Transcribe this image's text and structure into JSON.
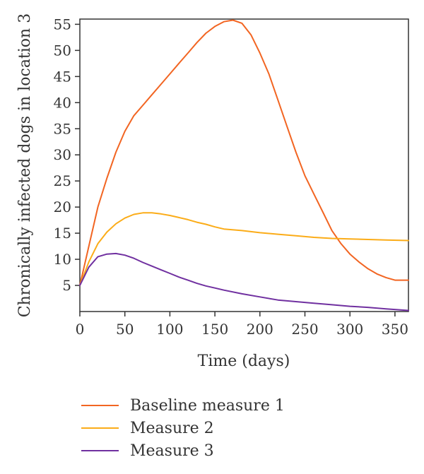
{
  "chart_data": {
    "type": "line",
    "title": "",
    "xlabel": "Time (days)",
    "ylabel": "Chronically infected dogs in location 3",
    "xlim": [
      0,
      365
    ],
    "ylim": [
      0,
      56
    ],
    "xticks": [
      0,
      50,
      100,
      150,
      200,
      250,
      300,
      350
    ],
    "yticks": [
      5,
      10,
      15,
      20,
      25,
      30,
      35,
      40,
      45,
      50,
      55
    ],
    "grid": false,
    "legend": "bottom",
    "series": [
      {
        "name": "Baseline measure 1",
        "color": "#f26522",
        "x": [
          0,
          10,
          20,
          30,
          40,
          50,
          60,
          70,
          80,
          90,
          100,
          110,
          120,
          130,
          140,
          150,
          160,
          170,
          180,
          190,
          200,
          210,
          220,
          230,
          240,
          250,
          260,
          270,
          280,
          290,
          300,
          310,
          320,
          330,
          340,
          350,
          360,
          365
        ],
        "values": [
          5,
          12.5,
          20,
          25.5,
          30.5,
          34.5,
          37.5,
          39.5,
          41.5,
          43.5,
          45.5,
          47.5,
          49.5,
          51.5,
          53.3,
          54.6,
          55.5,
          55.8,
          55.2,
          53,
          49.5,
          45.5,
          40.5,
          35.5,
          30.5,
          26,
          22.5,
          19,
          15.5,
          13,
          11,
          9.5,
          8.2,
          7.2,
          6.5,
          6.0,
          6.0,
          6.0
        ]
      },
      {
        "name": "Measure 2",
        "color": "#fbac18",
        "x": [
          0,
          10,
          20,
          30,
          40,
          50,
          60,
          70,
          80,
          90,
          100,
          110,
          120,
          130,
          140,
          150,
          160,
          180,
          200,
          220,
          240,
          260,
          280,
          300,
          320,
          340,
          365
        ],
        "values": [
          5,
          9.5,
          13,
          15.2,
          16.8,
          17.9,
          18.6,
          18.9,
          18.9,
          18.7,
          18.4,
          18.0,
          17.6,
          17.1,
          16.7,
          16.2,
          15.8,
          15.5,
          15.1,
          14.8,
          14.5,
          14.2,
          14.0,
          13.9,
          13.8,
          13.7,
          13.6
        ]
      },
      {
        "name": "Measure 3",
        "color": "#7030a0",
        "x": [
          0,
          10,
          20,
          30,
          40,
          50,
          60,
          70,
          80,
          90,
          100,
          110,
          120,
          130,
          140,
          150,
          160,
          180,
          200,
          220,
          240,
          260,
          280,
          300,
          320,
          340,
          365
        ],
        "values": [
          5,
          8.5,
          10.5,
          11.0,
          11.1,
          10.8,
          10.2,
          9.4,
          8.7,
          8.0,
          7.3,
          6.6,
          6.0,
          5.4,
          4.9,
          4.5,
          4.1,
          3.4,
          2.8,
          2.2,
          1.9,
          1.6,
          1.3,
          1.0,
          0.8,
          0.5,
          0.2
        ]
      }
    ]
  }
}
